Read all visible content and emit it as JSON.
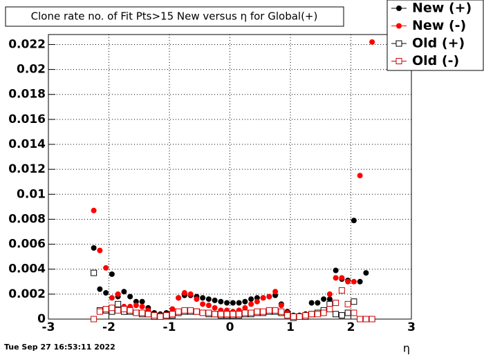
{
  "chart_data": {
    "type": "scatter",
    "title": "Clone rate no. of Fit Pts>15 New versus η for Global(+)",
    "x_label": "η",
    "footer": "Tue Sep 27 16:53:11 2022",
    "x": [
      -2.25,
      -2.15,
      -2.05,
      -1.95,
      -1.85,
      -1.75,
      -1.65,
      -1.55,
      -1.45,
      -1.35,
      -1.25,
      -1.15,
      -1.05,
      -0.95,
      -0.85,
      -0.75,
      -0.65,
      -0.55,
      -0.45,
      -0.35,
      -0.25,
      -0.15,
      -0.05,
      0.05,
      0.15,
      0.25,
      0.35,
      0.45,
      0.55,
      0.65,
      0.75,
      0.85,
      0.95,
      1.05,
      1.15,
      1.25,
      1.35,
      1.45,
      1.55,
      1.65,
      1.75,
      1.85,
      1.95,
      2.05,
      2.15,
      2.25,
      2.35
    ],
    "series": [
      {
        "name": "New (+)",
        "color": "#000000",
        "marker": "filled-circle",
        "values": [
          0.0057,
          0.0024,
          0.0021,
          0.0036,
          0.0018,
          0.0022,
          0.0018,
          0.0014,
          0.0014,
          0.0009,
          0.0005,
          0.0004,
          0.0005,
          0.0008,
          0.0017,
          0.0019,
          0.0019,
          0.0018,
          0.0017,
          0.0016,
          0.0015,
          0.0014,
          0.0013,
          0.0013,
          0.0013,
          0.0014,
          0.0016,
          0.0017,
          0.0017,
          0.0018,
          0.0019,
          0.0012,
          0.0006,
          0.0003,
          0.0003,
          0.0004,
          0.0013,
          0.0013,
          0.0016,
          0.0016,
          0.0039,
          0.0032,
          0.0031,
          0.0079,
          0.003,
          0.0037,
          0
        ]
      },
      {
        "name": "New (-)",
        "color": "#ff0000",
        "marker": "filled-circle",
        "values": [
          0.0087,
          0.0055,
          0.0041,
          0.0017,
          0.002,
          0.001,
          0.001,
          0.0011,
          0.001,
          0.0007,
          0.0003,
          0.0003,
          0.0003,
          0.0008,
          0.0017,
          0.0021,
          0.002,
          0.0016,
          0.0012,
          0.0011,
          0.0009,
          0.0007,
          0.0007,
          0.0006,
          0.0007,
          0.0009,
          0.0012,
          0.0014,
          0.0017,
          0.0018,
          0.0022,
          0.0011,
          0.0005,
          0.0002,
          0.0002,
          0.0003,
          0.0004,
          0.0005,
          0.0006,
          0.002,
          0.0033,
          0.0033,
          0.003,
          0.003,
          0.0115,
          0,
          0.0222
        ]
      },
      {
        "name": "Old (+)",
        "color": "#000000",
        "marker": "open-square",
        "values": [
          0.0037,
          0.0007,
          0.0007,
          0.0006,
          0.0012,
          0.0006,
          0.0006,
          0.0005,
          0.0004,
          0.0004,
          0.0002,
          0.0002,
          0.0003,
          0.0003,
          0.0005,
          0.0006,
          0.0006,
          0.0006,
          0.0005,
          0.0004,
          0.0004,
          0.0003,
          0.0003,
          0.0003,
          0.0003,
          0.0004,
          0.0004,
          0.0005,
          0.0005,
          0.0006,
          0.0006,
          0.0005,
          0.0003,
          0.0001,
          0.0002,
          0.0002,
          0.0004,
          0.0005,
          0.0007,
          0.0012,
          0.0004,
          0.0003,
          0.0005,
          0.0014,
          0,
          0,
          0
        ]
      },
      {
        "name": "Old (-)",
        "color": "#cc0000",
        "marker": "open-square",
        "values": [
          0,
          0.0006,
          0.0008,
          0.0009,
          0.0007,
          0.0008,
          0.0007,
          0.0005,
          0.0005,
          0.0004,
          0.0003,
          0.0002,
          0.0003,
          0.0004,
          0.0006,
          0.0007,
          0.0007,
          0.0006,
          0.0005,
          0.0005,
          0.0004,
          0.0004,
          0.0004,
          0.0004,
          0.0004,
          0.0005,
          0.0005,
          0.0006,
          0.0006,
          0.0007,
          0.0007,
          0.0006,
          0.0003,
          0.0002,
          0.0002,
          0.0003,
          0.0004,
          0.0004,
          0.0005,
          0.0008,
          0.0013,
          0.0023,
          0.0012,
          0.0005,
          0,
          0,
          0
        ]
      }
    ],
    "xlim": [
      -3,
      3
    ],
    "ylim": [
      0,
      0.0228
    ],
    "xticks": [
      -3,
      -2,
      -1,
      0,
      1,
      2,
      3
    ],
    "yticks": [
      0,
      0.002,
      0.004,
      0.006,
      0.008,
      0.01,
      0.012,
      0.014,
      0.016,
      0.018,
      0.02,
      0.022
    ],
    "grid": true,
    "legend": "top-right"
  }
}
